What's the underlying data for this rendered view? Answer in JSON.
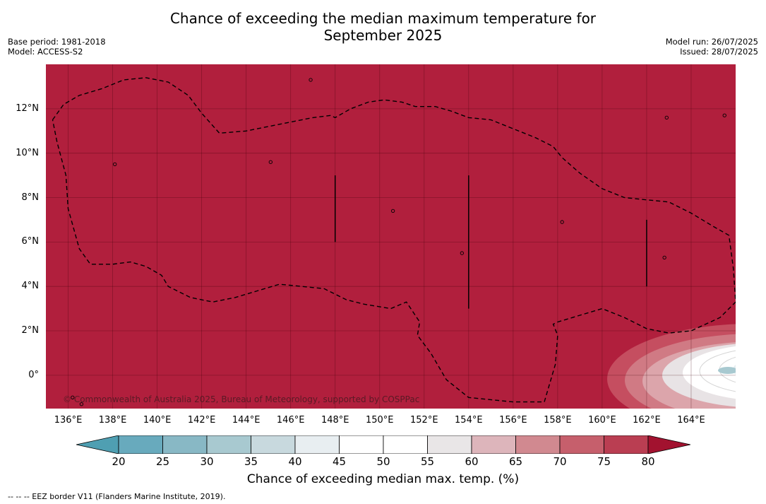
{
  "title": {
    "line1": "Chance of exceeding the median maximum temperature for",
    "line2": "September 2025"
  },
  "meta": {
    "base_period": "Base period: 1981-2018",
    "model": "Model: ACCESS-S2",
    "model_run": "Model run: 26/07/2025",
    "issued": "Issued: 28/07/2025"
  },
  "map": {
    "lon_range": [
      135,
      166
    ],
    "lat_range": [
      -1.5,
      14
    ],
    "background_color": "#b11f3d",
    "grid": true,
    "lat_ticks": [
      "12°N",
      "10°N",
      "8°N",
      "6°N",
      "4°N",
      "2°N",
      "0°"
    ],
    "lon_ticks": [
      "136°E",
      "138°E",
      "140°E",
      "142°E",
      "144°E",
      "146°E",
      "148°E",
      "150°E",
      "152°E",
      "154°E",
      "156°E",
      "158°E",
      "160°E",
      "162°E",
      "164°E"
    ],
    "copyright": "© Commonwealth of Australia 2025, Bureau of Meteorology, supported by COSPPac",
    "eez_boundary_lonlat": [
      [
        135.3,
        11.5
      ],
      [
        135.8,
        12.2
      ],
      [
        136.5,
        12.6
      ],
      [
        137.5,
        12.9
      ],
      [
        138.5,
        13.3
      ],
      [
        139.5,
        13.4
      ],
      [
        140.5,
        13.2
      ],
      [
        141.4,
        12.6
      ],
      [
        142.0,
        11.8
      ],
      [
        142.8,
        10.9
      ],
      [
        144.0,
        11.0
      ],
      [
        145.5,
        11.3
      ],
      [
        147.0,
        11.6
      ],
      [
        147.8,
        11.7
      ],
      [
        148.0,
        11.6
      ],
      [
        148.7,
        12.0
      ],
      [
        149.5,
        12.3
      ],
      [
        150.2,
        12.4
      ],
      [
        151.0,
        12.3
      ],
      [
        151.6,
        12.1
      ],
      [
        152.5,
        12.1
      ],
      [
        153.2,
        11.9
      ],
      [
        154.0,
        11.6
      ],
      [
        155.0,
        11.5
      ],
      [
        156.0,
        11.1
      ],
      [
        157.0,
        10.7
      ],
      [
        157.8,
        10.3
      ],
      [
        158.2,
        9.8
      ],
      [
        159.0,
        9.1
      ],
      [
        160.0,
        8.4
      ],
      [
        161.0,
        8.0
      ],
      [
        162.0,
        7.9
      ],
      [
        163.0,
        7.8
      ],
      [
        164.0,
        7.3
      ],
      [
        165.0,
        6.7
      ],
      [
        165.7,
        6.3
      ],
      [
        165.9,
        4.8
      ],
      [
        166.0,
        3.3
      ],
      [
        165.3,
        2.6
      ],
      [
        164.0,
        2.0
      ],
      [
        163.0,
        1.9
      ],
      [
        162.0,
        2.1
      ],
      [
        161.0,
        2.6
      ],
      [
        160.0,
        3.0
      ],
      [
        159.0,
        2.7
      ],
      [
        158.0,
        2.4
      ],
      [
        157.8,
        2.3
      ],
      [
        158.0,
        1.8
      ],
      [
        157.9,
        0.5
      ],
      [
        157.4,
        -1.2
      ],
      [
        156.0,
        -1.2
      ],
      [
        154.0,
        -1.0
      ],
      [
        153.0,
        -0.2
      ],
      [
        152.3,
        1.0
      ],
      [
        151.7,
        1.8
      ],
      [
        151.8,
        2.4
      ],
      [
        151.2,
        3.3
      ],
      [
        150.5,
        3.0
      ],
      [
        149.3,
        3.2
      ],
      [
        148.5,
        3.4
      ],
      [
        147.5,
        3.9
      ],
      [
        146.5,
        4.0
      ],
      [
        145.5,
        4.1
      ],
      [
        144.5,
        3.8
      ],
      [
        143.5,
        3.5
      ],
      [
        142.5,
        3.3
      ],
      [
        141.5,
        3.5
      ],
      [
        140.5,
        4.0
      ],
      [
        140.2,
        4.5
      ],
      [
        139.5,
        4.9
      ],
      [
        138.8,
        5.1
      ],
      [
        138.0,
        5.0
      ],
      [
        137.0,
        5.0
      ],
      [
        136.5,
        5.7
      ],
      [
        136.0,
        7.5
      ],
      [
        135.9,
        9.0
      ],
      [
        135.5,
        10.5
      ],
      [
        135.3,
        11.5
      ]
    ],
    "vertical_segments": [
      {
        "lon": 148.0,
        "lat_from": 6.0,
        "lat_to": 9.0
      },
      {
        "lon": 154.0,
        "lat_from": 3.0,
        "lat_to": 9.0
      },
      {
        "lon": 162.0,
        "lat_from": 4.0,
        "lat_to": 7.0
      }
    ],
    "islands": [
      {
        "lon": 146.9,
        "lat": 13.3
      },
      {
        "lon": 145.1,
        "lat": 9.6
      },
      {
        "lon": 150.6,
        "lat": 7.4
      },
      {
        "lon": 158.2,
        "lat": 6.9
      },
      {
        "lon": 162.8,
        "lat": 5.3
      },
      {
        "lon": 153.7,
        "lat": 5.5
      },
      {
        "lon": 138.1,
        "lat": 9.5
      },
      {
        "lon": 162.9,
        "lat": 11.6
      },
      {
        "lon": 165.5,
        "lat": 11.7
      },
      {
        "lon": 136.2,
        "lat": -1.0
      },
      {
        "lon": 136.6,
        "lat": -1.3
      }
    ]
  },
  "colorbar": {
    "tick_labels": [
      "20",
      "25",
      "30",
      "35",
      "40",
      "45",
      "50",
      "55",
      "60",
      "65",
      "70",
      "75",
      "80"
    ],
    "bin_colors": [
      "#68aabd",
      "#88b8c5",
      "#a8c9d0",
      "#c8d9de",
      "#e8eef1",
      "#ffffff",
      "#ffffff",
      "#e9e6e7",
      "#ddb5bb",
      "#d18990",
      "#c65f6c",
      "#ba3e52"
    ],
    "extend_low_color": "#4f9fb2",
    "extend_high_color": "#a2122f",
    "label": "Chance of exceeding median max. temp. (%)"
  },
  "legend": {
    "eez_line": "-- -- -- EEZ border V11 (Flanders Marine Institute, 2019)."
  }
}
